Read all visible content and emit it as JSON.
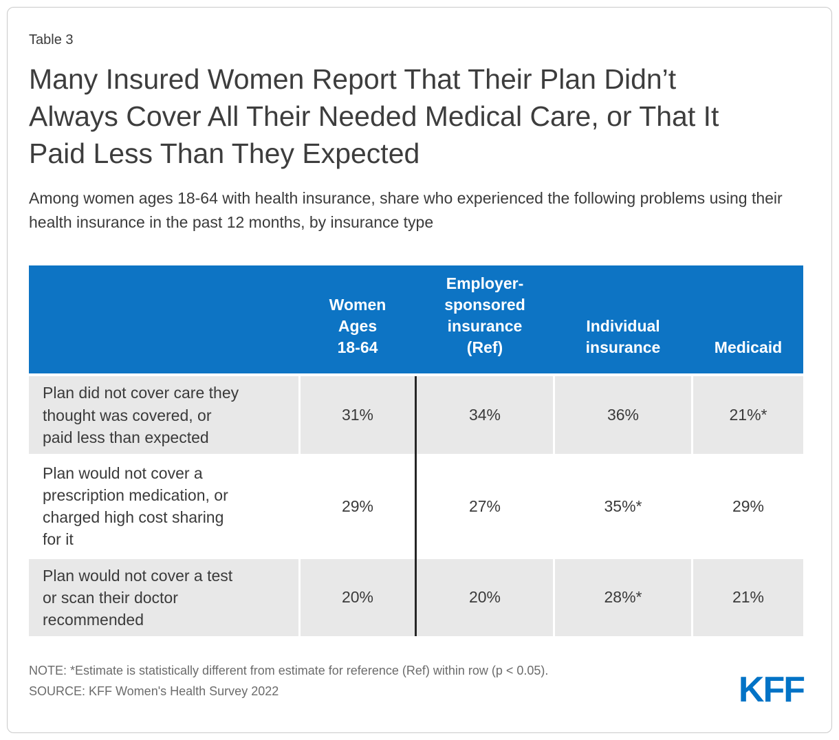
{
  "page": {
    "table_label": "Table 3",
    "title": "Many Insured Women Report That Their Plan Didn’t Always Cover All Their Needed Medical Care, or That It Paid Less Than They Expected",
    "subtitle": "Among women ages 18-64 with health insurance, share who experienced the following problems using their health insurance in the past 12 months, by insurance type",
    "note": "NOTE: *Estimate is statistically different from estimate for reference (Ref) within row (p < 0.05).",
    "source": "SOURCE: KFF Women's Health Survey 2022",
    "logo_text": "KFF"
  },
  "colors": {
    "header_blue": "#0d74c4",
    "logo_blue": "#0273c6",
    "row_gray": "#e8e8e8",
    "divider_black": "#262626"
  },
  "chart_data": {
    "type": "table",
    "title": "Many Insured Women Report That Their Plan Didn’t Always Cover All Their Needed Medical Care, or That It Paid Less Than They Expected",
    "subtitle": "Among women ages 18-64 with health insurance, share who experienced the following problems using their health insurance in the past 12 months, by insurance type",
    "columns": [
      "Women\nAges\n18-64",
      "Employer-\nsponsored\ninsurance\n(Ref)",
      "Individual\ninsurance",
      "Medicaid"
    ],
    "rows": [
      {
        "label": "Plan did not cover care they\nthought was covered, or\npaid less than expected",
        "values": [
          "31%",
          "34%",
          "36%",
          "21%*"
        ]
      },
      {
        "label": "Plan would not cover a\nprescription medication, or\ncharged high cost sharing\nfor it",
        "values": [
          "29%",
          "27%",
          "35%*",
          "29%"
        ]
      },
      {
        "label": "Plan would not cover a test\nor scan their doctor\nrecommended",
        "values": [
          "20%",
          "20%",
          "28%*",
          "21%"
        ]
      }
    ],
    "reference_column": "Employer-sponsored insurance (Ref)",
    "note": "NOTE: *Estimate is statistically different from estimate for reference (Ref) within row (p < 0.05).",
    "source": "SOURCE: KFF Women's Health Survey 2022"
  }
}
